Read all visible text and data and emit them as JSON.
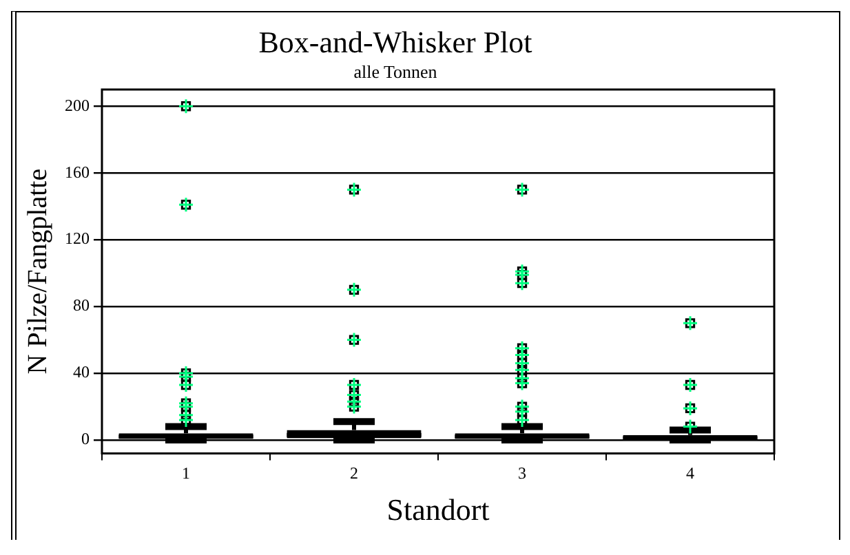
{
  "chart_data": {
    "type": "box",
    "title": "Box-and-Whisker Plot",
    "subtitle": "alle Tonnen",
    "xlabel": "Standort",
    "ylabel": "N Pilze/Fangplatte",
    "categories": [
      "1",
      "2",
      "3",
      "4"
    ],
    "boxes": [
      {
        "low": 0,
        "q1": 1,
        "median": 2,
        "q3": 4,
        "high": 8,
        "outliers": [
          200,
          141,
          40,
          38,
          33,
          22,
          20,
          15,
          12
        ]
      },
      {
        "low": 0,
        "q1": 1,
        "median": 3,
        "q3": 6,
        "high": 11,
        "outliers": [
          150,
          90,
          60,
          33,
          27,
          23,
          20
        ]
      },
      {
        "low": 0,
        "q1": 1,
        "median": 2,
        "q3": 4,
        "high": 8,
        "outliers": [
          150,
          101,
          99,
          94,
          55,
          51,
          46,
          42,
          37,
          34,
          20,
          17,
          12
        ]
      },
      {
        "low": 0,
        "q1": 0,
        "median": 1,
        "q3": 3,
        "high": 6,
        "outliers": [
          70,
          33,
          19,
          8
        ]
      }
    ],
    "color": "#000000",
    "marker": "square",
    "ylim": [
      -8,
      210
    ],
    "yticks": [
      0,
      40,
      80,
      120,
      160,
      200
    ],
    "grid": "y",
    "legend": false
  }
}
